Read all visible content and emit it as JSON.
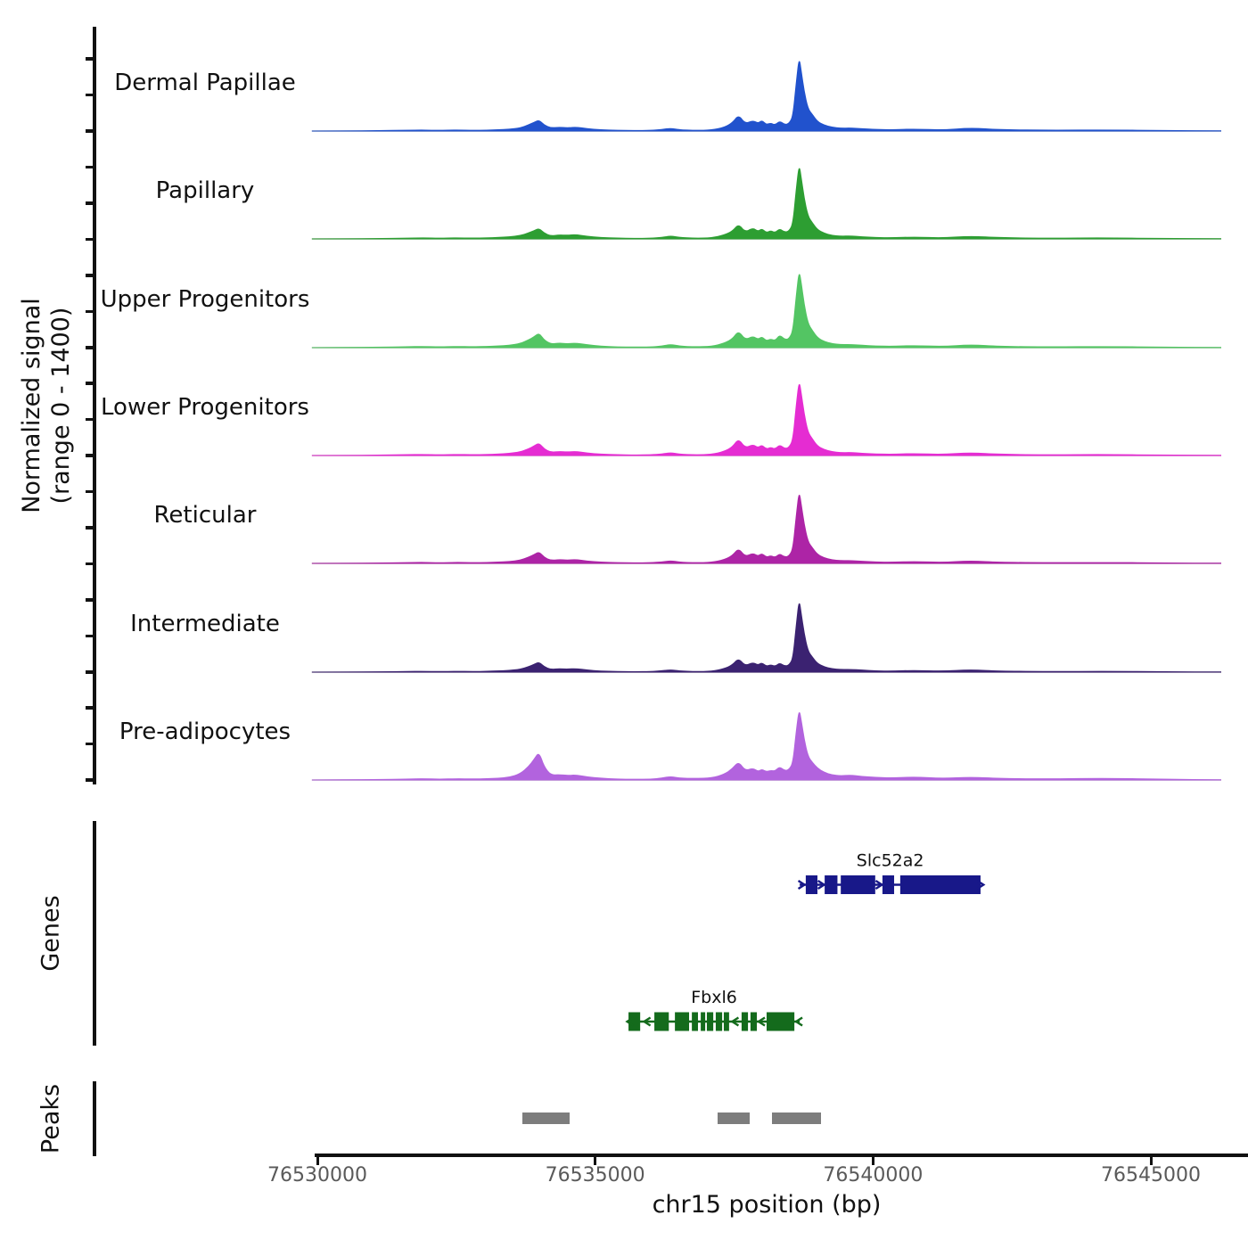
{
  "y_axis": {
    "label_line1": "Normalized signal",
    "label_line2": "(range 0 - 1400)",
    "range_min": 0,
    "range_max": 1400
  },
  "x_axis": {
    "label": "chr15 position (bp)",
    "tick_values": [
      76530000,
      76535000,
      76540000,
      76545000
    ],
    "tick_labels": [
      "76530000",
      "76535000",
      "76540000",
      "76545000"
    ]
  },
  "sections": {
    "genes_label": "Genes",
    "peaks_label": "Peaks"
  },
  "chart_data": {
    "type": "area",
    "title": "",
    "xlabel": "chr15 position (bp)",
    "ylabel": "Normalized signal (range 0 - 1400)",
    "ylim": [
      0,
      1400
    ],
    "xlim": [
      76529900,
      76546260
    ],
    "x_bp": [
      76529900,
      76530500,
      76531100,
      76531600,
      76531900,
      76532200,
      76532500,
      76532800,
      76533050,
      76533250,
      76533450,
      76533650,
      76533800,
      76533900,
      76533990,
      76534080,
      76534200,
      76534350,
      76534500,
      76534650,
      76534850,
      76535100,
      76535400,
      76535700,
      76536000,
      76536200,
      76536360,
      76536520,
      76536800,
      76537100,
      76537320,
      76537470,
      76537580,
      76537700,
      76537840,
      76537930,
      76538000,
      76538080,
      76538160,
      76538240,
      76538320,
      76538410,
      76538490,
      76538560,
      76538620,
      76538670,
      76538710,
      76538760,
      76538830,
      76538910,
      76539000,
      76539120,
      76539260,
      76539420,
      76539600,
      76539800,
      76540050,
      76540350,
      76540750,
      76541250,
      76541750,
      76542300,
      76543200,
      76544200,
      76545300,
      76546260
    ],
    "series": [
      {
        "name": "Dermal Papillae",
        "color": "#2152cd",
        "values": [
          0,
          3,
          8,
          15,
          20,
          12,
          22,
          14,
          18,
          28,
          35,
          60,
          120,
          170,
          215,
          120,
          60,
          75,
          62,
          78,
          45,
          25,
          14,
          10,
          12,
          30,
          55,
          25,
          12,
          20,
          70,
          160,
          315,
          140,
          205,
          150,
          210,
          125,
          155,
          115,
          195,
          125,
          145,
          290,
          950,
          1440,
          1150,
          780,
          430,
          320,
          185,
          115,
          75,
          55,
          60,
          45,
          30,
          25,
          40,
          20,
          60,
          25,
          15,
          22,
          10,
          4
        ]
      },
      {
        "name": "Papillary",
        "color": "#2d9e32",
        "values": [
          0,
          3,
          7,
          14,
          22,
          14,
          20,
          16,
          20,
          30,
          40,
          65,
          115,
          160,
          205,
          115,
          55,
          80,
          70,
          85,
          50,
          28,
          15,
          10,
          12,
          28,
          60,
          28,
          14,
          22,
          75,
          150,
          290,
          130,
          215,
          145,
          200,
          120,
          160,
          120,
          200,
          130,
          150,
          300,
          980,
          1450,
          1180,
          800,
          440,
          310,
          180,
          110,
          70,
          52,
          58,
          42,
          28,
          22,
          38,
          18,
          55,
          22,
          14,
          20,
          9,
          4
        ]
      },
      {
        "name": "Upper Progenitors",
        "color": "#53c563",
        "values": [
          0,
          4,
          9,
          16,
          24,
          15,
          24,
          18,
          22,
          32,
          45,
          80,
          150,
          210,
          285,
          150,
          70,
          90,
          75,
          90,
          55,
          30,
          16,
          12,
          14,
          32,
          65,
          30,
          15,
          25,
          85,
          170,
          330,
          150,
          225,
          160,
          215,
          130,
          170,
          135,
          250,
          160,
          170,
          330,
          1020,
          1500,
          1250,
          850,
          470,
          330,
          195,
          120,
          80,
          58,
          62,
          46,
          32,
          26,
          42,
          22,
          58,
          24,
          15,
          22,
          10,
          4
        ]
      },
      {
        "name": "Lower Progenitors",
        "color": "#e52cd2",
        "values": [
          0,
          3,
          8,
          15,
          22,
          14,
          22,
          16,
          20,
          30,
          40,
          70,
          130,
          185,
          245,
          130,
          62,
          80,
          68,
          82,
          48,
          26,
          15,
          11,
          13,
          30,
          58,
          26,
          13,
          22,
          78,
          165,
          330,
          145,
          215,
          150,
          205,
          125,
          160,
          125,
          210,
          135,
          155,
          310,
          990,
          1460,
          1200,
          820,
          450,
          320,
          185,
          115,
          75,
          55,
          60,
          44,
          30,
          24,
          40,
          20,
          55,
          22,
          14,
          20,
          9,
          4
        ]
      },
      {
        "name": "Reticular",
        "color": "#ad24a6",
        "values": [
          0,
          3,
          7,
          13,
          20,
          12,
          20,
          14,
          18,
          26,
          36,
          62,
          120,
          170,
          225,
          120,
          58,
          75,
          62,
          76,
          44,
          24,
          13,
          10,
          12,
          28,
          52,
          24,
          12,
          20,
          70,
          150,
          295,
          130,
          200,
          140,
          195,
          118,
          150,
          115,
          190,
          122,
          142,
          285,
          940,
          1410,
          1130,
          770,
          420,
          300,
          175,
          108,
          70,
          52,
          56,
          42,
          28,
          22,
          36,
          18,
          50,
          20,
          13,
          18,
          8,
          3
        ]
      },
      {
        "name": "Intermediate",
        "color": "#3b2271",
        "values": [
          0,
          2,
          6,
          12,
          18,
          11,
          18,
          13,
          16,
          24,
          33,
          56,
          105,
          150,
          195,
          105,
          52,
          68,
          58,
          70,
          40,
          22,
          12,
          9,
          11,
          26,
          48,
          22,
          11,
          18,
          65,
          140,
          270,
          120,
          190,
          135,
          185,
          112,
          145,
          110,
          180,
          118,
          135,
          270,
          920,
          1420,
          1120,
          760,
          410,
          290,
          168,
          104,
          66,
          50,
          54,
          40,
          26,
          20,
          34,
          17,
          48,
          19,
          12,
          17,
          8,
          3
        ]
      },
      {
        "name": "Pre-adipocytes",
        "color": "#b263de",
        "values": [
          0,
          4,
          10,
          18,
          26,
          16,
          25,
          20,
          24,
          35,
          50,
          120,
          260,
          400,
          545,
          260,
          95,
          105,
          88,
          100,
          60,
          34,
          18,
          14,
          16,
          36,
          70,
          34,
          30,
          40,
          110,
          220,
          360,
          180,
          230,
          165,
          210,
          160,
          185,
          175,
          260,
          180,
          200,
          340,
          960,
          1380,
          1150,
          800,
          460,
          340,
          230,
          150,
          100,
          80,
          95,
          70,
          50,
          40,
          60,
          30,
          55,
          30,
          20,
          35,
          14,
          5
        ]
      }
    ],
    "genes": [
      {
        "name": "Slc52a2",
        "color": "#181889",
        "strand": "+",
        "start": 76538680,
        "end": 76541940,
        "exons": [
          [
            76538790,
            76539000
          ],
          [
            76539130,
            76539360
          ],
          [
            76539420,
            76540040
          ],
          [
            76540170,
            76540380
          ],
          [
            76540490,
            76541935
          ]
        ]
      },
      {
        "name": "Fbxl6",
        "color": "#146b1c",
        "strand": "-",
        "start": 76535600,
        "end": 76538680,
        "exons": [
          [
            76535600,
            76535810
          ],
          [
            76536065,
            76536325
          ],
          [
            76536435,
            76536690
          ],
          [
            76536740,
            76536850
          ],
          [
            76536900,
            76536980
          ],
          [
            76537010,
            76537125
          ],
          [
            76537170,
            76537285
          ],
          [
            76537315,
            76537410
          ],
          [
            76537635,
            76537750
          ],
          [
            76537795,
            76537910
          ],
          [
            76538085,
            76538585
          ]
        ]
      }
    ],
    "peaks": {
      "color": "#7d7d7d",
      "intervals": [
        [
          76533690,
          76534540
        ],
        [
          76537205,
          76537782
        ],
        [
          76538183,
          76539066
        ]
      ]
    }
  }
}
